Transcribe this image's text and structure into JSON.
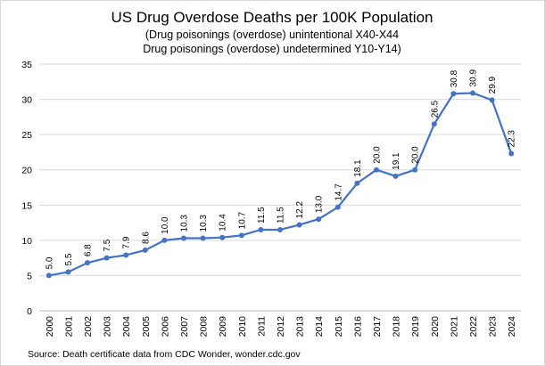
{
  "chart_data": {
    "type": "line",
    "title": "US Drug Overdose Deaths per 100K Population",
    "subtitle_lines": [
      "(Drug poisonings (overdose) unintentional X40-X44",
      "Drug poisonings (overdose) undetermined Y10-Y14)"
    ],
    "x": [
      "2000",
      "2001",
      "2002",
      "2003",
      "2004",
      "2005",
      "2006",
      "2007",
      "2008",
      "2009",
      "2010",
      "2011",
      "2012",
      "2013",
      "2014",
      "2015",
      "2016",
      "2017",
      "2018",
      "2019",
      "2020",
      "2021",
      "2022",
      "2023",
      "2024"
    ],
    "values": [
      5.0,
      5.5,
      6.8,
      7.5,
      7.9,
      8.6,
      10.0,
      10.3,
      10.3,
      10.4,
      10.7,
      11.5,
      11.5,
      12.2,
      13.0,
      14.7,
      18.1,
      20.0,
      19.1,
      20.0,
      26.5,
      30.8,
      30.9,
      29.9,
      22.3
    ],
    "data_labels": [
      "5.0",
      "5.5",
      "6.8",
      "7.5",
      "7.9",
      "8.6",
      "10.0",
      "10.3",
      "10.3",
      "10.4",
      "10.7",
      "11.5",
      "11.5",
      "12.2",
      "13.0",
      "14.7",
      "18.1",
      "20.0",
      "19.1",
      "20.0",
      "26.5",
      "30.8",
      "30.9",
      "29.9",
      "22.3"
    ],
    "y_ticks": [
      "0",
      "5",
      "10",
      "15",
      "20",
      "25",
      "30",
      "35"
    ],
    "ylim": [
      0,
      35
    ],
    "xlabel": "",
    "ylabel": "",
    "grid": true,
    "legend": "none",
    "series_color": "#4472C4",
    "source": "Source: Death certificate data from CDC Wonder, wonder.cdc.gov"
  }
}
